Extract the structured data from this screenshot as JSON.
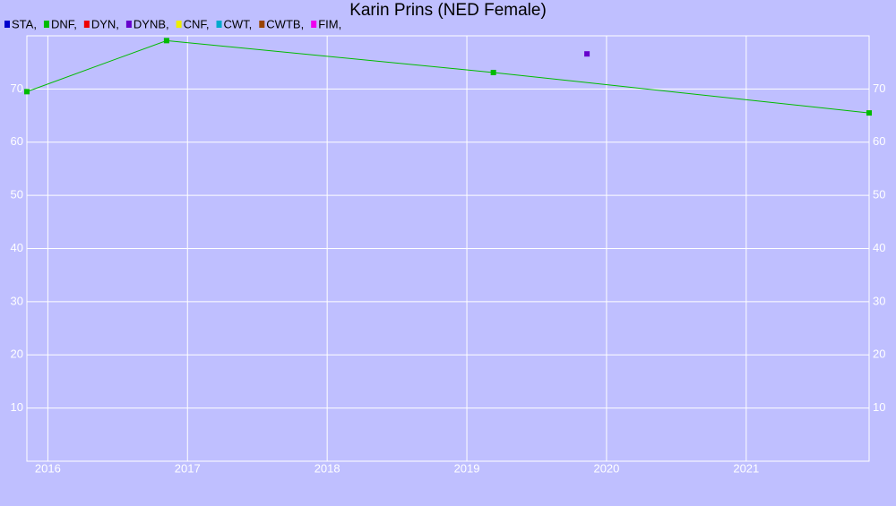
{
  "chart_data": {
    "type": "line",
    "title": "Karin Prins (NED Female)",
    "xlim": [
      2015.85,
      2021.88
    ],
    "xticks": [
      2016,
      2017,
      2018,
      2019,
      2020,
      2021
    ],
    "ylim": [
      0,
      80
    ],
    "yticks": [
      10,
      20,
      30,
      40,
      50,
      60,
      70
    ],
    "grid": true,
    "series": [
      {
        "name": "STA,",
        "color": "#0000cc",
        "x": [],
        "values": []
      },
      {
        "name": "DNF,",
        "color": "#00bb00",
        "x": [
          2015.85,
          2016.85,
          2019.19,
          2021.88
        ],
        "values": [
          69.5,
          79.1,
          73.1,
          65.5
        ]
      },
      {
        "name": "DYN,",
        "color": "#ee0000",
        "x": [],
        "values": []
      },
      {
        "name": "DYNB,",
        "color": "#6600cc",
        "x": [
          2019.86
        ],
        "values": [
          76.6
        ]
      },
      {
        "name": "CNF,",
        "color": "#eeee00",
        "x": [],
        "values": []
      },
      {
        "name": "CWT,",
        "color": "#00aacc",
        "x": [],
        "values": []
      },
      {
        "name": "CWTB,",
        "color": "#994400",
        "x": [],
        "values": []
      },
      {
        "name": "FIM,",
        "color": "#ee00ee",
        "x": [],
        "values": []
      }
    ]
  }
}
